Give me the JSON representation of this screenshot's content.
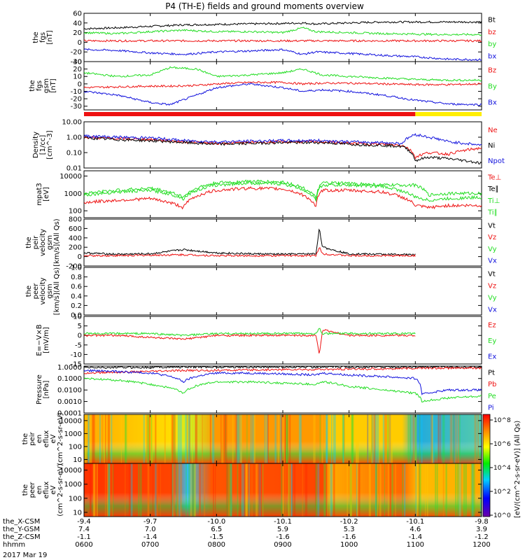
{
  "title": "P4 (TH-E) fields and ground moments overview",
  "date": "2017 Mar 19",
  "colors": {
    "black": "#000000",
    "red": "#ee1111",
    "green": "#22dd22",
    "blue": "#1111dd",
    "yellow": "#ffee00"
  },
  "chart_data": [
    {
      "type": "line",
      "ylabel": [
        "the",
        "fgs",
        "[nT]"
      ],
      "ylim": [
        -40,
        60
      ],
      "ticks": [
        "60",
        "40",
        "20",
        "0",
        "-20",
        "-40"
      ],
      "tick_values": [
        60,
        40,
        20,
        0,
        -20,
        -40
      ],
      "legend": [
        "Bt",
        "bz",
        "by",
        "bx"
      ],
      "legend_colors": [
        "#000000",
        "#ee1111",
        "#22dd22",
        "#1111dd"
      ],
      "x_hours": [
        6,
        6.5,
        7,
        7.5,
        8,
        8.5,
        9,
        9.3,
        9.5,
        10,
        10.5,
        11,
        11.5,
        12
      ],
      "series": [
        {
          "name": "Bt",
          "values": [
            28,
            30,
            33,
            36,
            37,
            38,
            39,
            40,
            38,
            40,
            42,
            42,
            42,
            42
          ]
        },
        {
          "name": "bz",
          "values": [
            3,
            3,
            3,
            3,
            3,
            3,
            3,
            3,
            3,
            3,
            3,
            3,
            3,
            3
          ]
        },
        {
          "name": "by",
          "values": [
            20,
            18,
            22,
            25,
            22,
            22,
            20,
            30,
            22,
            20,
            18,
            17,
            16,
            16
          ]
        },
        {
          "name": "bx",
          "values": [
            -15,
            -17,
            -22,
            -25,
            -20,
            -18,
            -15,
            -25,
            -20,
            -23,
            -27,
            -30,
            -35,
            -36
          ]
        }
      ]
    },
    {
      "type": "line",
      "ylabel": [
        "the",
        "fgs",
        "gsm",
        "[nT]"
      ],
      "ylim": [
        -35,
        30
      ],
      "ticks": [
        "30",
        "20",
        "10",
        "0",
        "-10",
        "-20",
        "-30"
      ],
      "tick_values": [
        30,
        20,
        10,
        0,
        -10,
        -20,
        -30
      ],
      "legend": [
        "Bz",
        "By",
        "Bx"
      ],
      "legend_colors": [
        "#ee1111",
        "#22dd22",
        "#1111dd"
      ],
      "x_hours": [
        6,
        6.5,
        7,
        7.3,
        7.7,
        8,
        8.5,
        9,
        9.3,
        9.6,
        10,
        10.5,
        11,
        11.5,
        12
      ],
      "series": [
        {
          "name": "Bz",
          "values": [
            -5,
            -4,
            -3,
            -3,
            -2,
            0,
            2,
            2,
            0,
            1,
            1,
            0,
            -1,
            -1,
            0
          ]
        },
        {
          "name": "By",
          "values": [
            15,
            10,
            12,
            22,
            20,
            10,
            12,
            15,
            20,
            12,
            10,
            8,
            6,
            5,
            5
          ]
        },
        {
          "name": "Bx",
          "values": [
            -10,
            -15,
            -25,
            -28,
            -15,
            -5,
            0,
            -5,
            -10,
            -8,
            -10,
            -15,
            -22,
            -27,
            -28
          ]
        }
      ]
    },
    {
      "type": "bar",
      "colors_segments": [
        {
          "from": 6.0,
          "to": 11.0,
          "color": "#ee1111"
        },
        {
          "from": 11.0,
          "to": 12.0,
          "color": "#ffee00"
        }
      ]
    },
    {
      "type": "line",
      "ylabel": [
        "Density",
        "[1/cc]",
        "[cm^-3]"
      ],
      "log": true,
      "ylim": [
        0.01,
        10
      ],
      "ticks": [
        "10.00",
        "1.00",
        "0.10",
        "0.01"
      ],
      "tick_values": [
        10,
        1,
        0.1,
        0.01
      ],
      "legend": [
        "Ne",
        "Ni",
        "Npot"
      ],
      "legend_colors": [
        "#ee1111",
        "#000000",
        "#1111dd"
      ],
      "x_hours": [
        6,
        6.5,
        7,
        7.5,
        8,
        8.5,
        9,
        9.4,
        9.6,
        10,
        10.5,
        10.8,
        11,
        11.2,
        11.5,
        12
      ],
      "series": [
        {
          "name": "Ne",
          "values": [
            1,
            0.8,
            0.7,
            0.5,
            0.4,
            0.45,
            0.5,
            0.5,
            0.5,
            0.4,
            0.35,
            0.3,
            0.05,
            0.1,
            0.08,
            0.2
          ]
        },
        {
          "name": "Ni",
          "values": [
            0.9,
            0.7,
            0.6,
            0.45,
            0.35,
            0.4,
            0.45,
            0.45,
            0.45,
            0.35,
            0.3,
            0.25,
            0.03,
            0.05,
            0.04,
            0.02
          ]
        },
        {
          "name": "Npot",
          "values": [
            1.2,
            1,
            0.9,
            0.6,
            0.5,
            0.55,
            0.6,
            0.6,
            0.6,
            0.5,
            0.45,
            0.4,
            1.5,
            1,
            0.5,
            0.3
          ]
        }
      ]
    },
    {
      "type": "line",
      "ylabel": [
        "mpat3",
        "[eV]"
      ],
      "log": true,
      "ylim": [
        40,
        20000
      ],
      "ticks": [
        "10000",
        "1000",
        "100"
      ],
      "tick_values": [
        10000,
        1000,
        100
      ],
      "legend": [
        "Te⊥",
        "Te∥",
        "Ti⊥",
        "Ti∥"
      ],
      "legend_colors": [
        "#ee1111",
        "#000000",
        "#22dd22",
        "#22dd22"
      ],
      "x_hours": [
        6,
        6.5,
        7,
        7.5,
        8,
        8.5,
        9,
        9.5,
        9.6,
        10,
        10.5,
        11,
        11.2,
        11.5,
        12
      ],
      "series": [
        {
          "name": "Te⊥",
          "values": [
            300,
            400,
            500,
            150,
            1500,
            2000,
            1800,
            150,
            1500,
            1500,
            1200,
            200,
            150,
            200,
            200
          ]
        },
        {
          "name": "Ti⊥",
          "values": [
            800,
            1200,
            1500,
            500,
            3000,
            4000,
            3500,
            400,
            3000,
            3000,
            2500,
            600,
            400,
            500,
            600
          ]
        },
        {
          "name": "Ti∥",
          "values": [
            1000,
            1500,
            2000,
            600,
            4000,
            5000,
            4500,
            500,
            4000,
            3800,
            3000,
            3000,
            800,
            1000,
            1000
          ]
        }
      ]
    },
    {
      "type": "line",
      "ylabel": [
        "the",
        "peir",
        "velocity",
        "gsm",
        "[km/s](All Qs)"
      ],
      "ylim": [
        -200,
        800
      ],
      "ticks": [
        "800",
        "600",
        "400",
        "200",
        "0",
        "-200"
      ],
      "tick_values": [
        800,
        600,
        400,
        200,
        0,
        -200
      ],
      "legend": [
        "Vt",
        "Vz",
        "Vy",
        "Vx"
      ],
      "legend_colors": [
        "#000000",
        "#ee1111",
        "#22dd22",
        "#1111dd"
      ],
      "x_hours": [
        6,
        6.5,
        7,
        7.5,
        8,
        8.5,
        9,
        9.5,
        9.55,
        9.6,
        10,
        10.5,
        11
      ],
      "series": [
        {
          "name": "Vt",
          "values": [
            80,
            50,
            60,
            150,
            80,
            60,
            50,
            60,
            600,
            200,
            60,
            50,
            40
          ]
        },
        {
          "name": "Vz",
          "values": [
            20,
            20,
            30,
            40,
            20,
            20,
            20,
            20,
            200,
            60,
            20,
            20,
            20
          ]
        }
      ]
    },
    {
      "type": "line",
      "ylabel": [
        "the",
        "peer",
        "velocity",
        "gsm",
        "[km/s](All Qs)"
      ],
      "ylim": [
        0,
        1
      ],
      "ticks": [
        "1.0",
        "0.8",
        "0.6",
        "0.4",
        "0.2",
        "0.0"
      ],
      "tick_values": [
        1,
        0.8,
        0.6,
        0.4,
        0.2,
        0
      ],
      "legend": [
        "Vt",
        "Vz",
        "Vy",
        "Vx"
      ],
      "legend_colors": [
        "#000000",
        "#ee1111",
        "#22dd22",
        "#1111dd"
      ],
      "series": []
    },
    {
      "type": "line",
      "ylabel": [
        "E=−V×B",
        "[mV/m]"
      ],
      "ylim": [
        -15,
        10
      ],
      "ticks": [
        "10",
        "5",
        "0",
        "-5",
        "-10",
        "-15"
      ],
      "tick_values": [
        10,
        5,
        0,
        -5,
        -10,
        -15
      ],
      "legend": [
        "Ez",
        "Ey",
        "Ex"
      ],
      "legend_colors": [
        "#ee1111",
        "#22dd22",
        "#1111dd"
      ],
      "x_hours": [
        6,
        6.5,
        7,
        7.5,
        8,
        8.5,
        9,
        9.5,
        9.55,
        9.6,
        10,
        10.5,
        11
      ],
      "series": [
        {
          "name": "Ez",
          "values": [
            0,
            0,
            -1,
            -2,
            0,
            0,
            0,
            0,
            -10,
            3,
            0,
            0,
            0
          ]
        },
        {
          "name": "Ey",
          "values": [
            1,
            1,
            1,
            0,
            1,
            1,
            1,
            1,
            4,
            1,
            1,
            1,
            1
          ]
        }
      ]
    },
    {
      "type": "line",
      "ylabel": [
        "Pressure",
        "[nPa]"
      ],
      "log": true,
      "ylim": [
        0.0001,
        1.2
      ],
      "ticks": [
        "1.0000",
        "0.1000",
        "0.0100",
        "0.0010",
        "0.0001"
      ],
      "tick_values": [
        1,
        0.1,
        0.01,
        0.001,
        0.0001
      ],
      "legend": [
        "Pt",
        "Pb",
        "Pe",
        "Pi"
      ],
      "legend_colors": [
        "#000000",
        "#ee1111",
        "#22dd22",
        "#1111dd"
      ],
      "x_hours": [
        6,
        6.5,
        7,
        7.5,
        8,
        8.5,
        9,
        9.5,
        9.6,
        10,
        10.5,
        11,
        11.1,
        11.5,
        12
      ],
      "series": [
        {
          "name": "Pt",
          "values": [
            0.9,
            0.9,
            0.95,
            1,
            1,
            1,
            1,
            1,
            1,
            1,
            1,
            1,
            1,
            1,
            1
          ]
        },
        {
          "name": "Pb",
          "values": [
            0.3,
            0.35,
            0.4,
            0.5,
            0.5,
            0.55,
            0.6,
            0.6,
            0.6,
            0.65,
            0.7,
            0.75,
            0.8,
            0.8,
            0.8
          ]
        },
        {
          "name": "Pe",
          "values": [
            0.1,
            0.07,
            0.03,
            0.005,
            0.05,
            0.05,
            0.04,
            0.03,
            0.05,
            0.02,
            0.01,
            0.005,
            0.001,
            0.002,
            0.003
          ]
        },
        {
          "name": "Pi",
          "values": [
            0.5,
            0.4,
            0.3,
            0.05,
            0.3,
            0.3,
            0.25,
            0.2,
            0.3,
            0.2,
            0.15,
            0.1,
            0.004,
            0.01,
            0.01
          ]
        }
      ]
    },
    {
      "type": "heatmap",
      "ylabel": [
        "the",
        "peir",
        "en",
        "eflux",
        "eV",
        "(cm^2-s-sr-eV)"
      ],
      "log": true,
      "ylim": [
        5,
        30000
      ],
      "ticks": [
        "10000",
        "1000",
        "100",
        "10"
      ],
      "tick_values": [
        10000,
        1000,
        100,
        10
      ]
    },
    {
      "type": "heatmap",
      "ylabel": [
        "the",
        "peer",
        "en",
        "eflux",
        "eV",
        "(cm^2-s-sr-eV)"
      ],
      "log": true,
      "ylim": [
        5,
        30000
      ],
      "ticks": [
        "10000",
        "1000",
        "100",
        "10"
      ],
      "tick_values": [
        10000,
        1000,
        100,
        10
      ]
    }
  ],
  "colorbar": {
    "label": "[eV/(cm^2-s-sr-eV)] (All Qs)",
    "ticks": [
      "10^8",
      "10^6",
      "10^4",
      "10^2",
      "10^0"
    ]
  },
  "x_axis": {
    "rows": [
      {
        "label": "the_X-CSM",
        "values": [
          "-9.4",
          "-9.7",
          "-10.0",
          "-10.1",
          "-10.2",
          "-10.1",
          "-9.8"
        ]
      },
      {
        "label": "the_Y-GSM",
        "values": [
          "7.4",
          "7.0",
          "6.5",
          "5.9",
          "5.3",
          "4.6",
          "3.9"
        ]
      },
      {
        "label": "the_Z-CSM",
        "values": [
          "-1.1",
          "-1.4",
          "-1.5",
          "-1.6",
          "-1.6",
          "-1.4",
          "-1.2"
        ]
      },
      {
        "label": "hhmm",
        "values": [
          "0600",
          "0700",
          "0800",
          "0900",
          "1000",
          "1100",
          "1200"
        ]
      }
    ]
  }
}
